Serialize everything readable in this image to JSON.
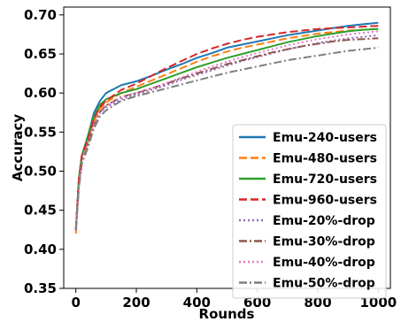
{
  "chart_data": {
    "type": "line",
    "title": "",
    "xlabel": "Rounds",
    "ylabel": "Accuracy",
    "xlim": [
      -40,
      1040
    ],
    "ylim": [
      0.35,
      0.71
    ],
    "xticks": [
      0,
      200,
      400,
      600,
      800,
      1000
    ],
    "yticks": [
      0.35,
      0.4,
      0.45,
      0.5,
      0.55,
      0.6,
      0.65,
      0.7
    ],
    "ytick_labels": [
      "0.35",
      "0.40",
      "0.45",
      "0.50",
      "0.55",
      "0.60",
      "0.65",
      "0.70"
    ],
    "grid": false,
    "legend_position": "lower-right",
    "x": [
      0,
      10,
      20,
      40,
      60,
      80,
      100,
      150,
      200,
      250,
      300,
      350,
      400,
      450,
      500,
      550,
      600,
      650,
      700,
      750,
      800,
      850,
      900,
      950,
      1000
    ],
    "series": [
      {
        "name": "Emu-240-users",
        "color": "#1f77b4",
        "dash": "solid",
        "values": [
          0.425,
          0.49,
          0.52,
          0.545,
          0.575,
          0.59,
          0.6,
          0.61,
          0.615,
          0.622,
          0.63,
          0.637,
          0.645,
          0.651,
          0.658,
          0.662,
          0.666,
          0.67,
          0.674,
          0.677,
          0.68,
          0.683,
          0.686,
          0.688,
          0.69
        ]
      },
      {
        "name": "Emu-480-users",
        "color": "#ff7f0e",
        "dash": "dashed",
        "values": [
          0.42,
          0.49,
          0.52,
          0.54,
          0.565,
          0.58,
          0.588,
          0.6,
          0.608,
          0.616,
          0.624,
          0.632,
          0.64,
          0.647,
          0.653,
          0.658,
          0.662,
          0.666,
          0.67,
          0.673,
          0.676,
          0.678,
          0.68,
          0.681,
          0.682
        ]
      },
      {
        "name": "Emu-720-users",
        "color": "#2ca02c",
        "dash": "solid",
        "values": [
          0.425,
          0.49,
          0.52,
          0.545,
          0.57,
          0.585,
          0.592,
          0.6,
          0.605,
          0.612,
          0.619,
          0.626,
          0.633,
          0.639,
          0.645,
          0.65,
          0.655,
          0.66,
          0.665,
          0.669,
          0.673,
          0.676,
          0.679,
          0.681,
          0.682
        ]
      },
      {
        "name": "Emu-960-users",
        "color": "#d62728",
        "dash": "dashed",
        "values": [
          0.425,
          0.49,
          0.52,
          0.54,
          0.568,
          0.582,
          0.59,
          0.604,
          0.612,
          0.622,
          0.632,
          0.641,
          0.65,
          0.657,
          0.663,
          0.668,
          0.672,
          0.675,
          0.678,
          0.68,
          0.682,
          0.683,
          0.684,
          0.685,
          0.686
        ]
      },
      {
        "name": "Emu-20%-drop",
        "color": "#9467bd",
        "dash": "dotted",
        "values": [
          0.425,
          0.48,
          0.51,
          0.535,
          0.56,
          0.575,
          0.582,
          0.592,
          0.598,
          0.604,
          0.61,
          0.617,
          0.623,
          0.629,
          0.635,
          0.641,
          0.646,
          0.651,
          0.656,
          0.66,
          0.664,
          0.667,
          0.67,
          0.672,
          0.674
        ]
      },
      {
        "name": "Emu-30%-drop",
        "color": "#8c564b",
        "dash": "dashdot",
        "values": [
          0.425,
          0.48,
          0.51,
          0.535,
          0.56,
          0.576,
          0.584,
          0.595,
          0.6,
          0.606,
          0.612,
          0.619,
          0.625,
          0.631,
          0.637,
          0.642,
          0.647,
          0.652,
          0.656,
          0.66,
          0.663,
          0.666,
          0.668,
          0.669,
          0.67
        ]
      },
      {
        "name": "Emu-40%-drop",
        "color": "#e377c2",
        "dash": "dotted",
        "values": [
          0.425,
          0.48,
          0.51,
          0.535,
          0.56,
          0.576,
          0.584,
          0.594,
          0.6,
          0.606,
          0.613,
          0.62,
          0.627,
          0.634,
          0.64,
          0.646,
          0.651,
          0.656,
          0.661,
          0.665,
          0.669,
          0.672,
          0.675,
          0.677,
          0.679
        ]
      },
      {
        "name": "Emu-50%-drop",
        "color": "#7f7f7f",
        "dash": "dashdot",
        "values": [
          0.425,
          0.48,
          0.51,
          0.53,
          0.555,
          0.57,
          0.578,
          0.59,
          0.596,
          0.601,
          0.606,
          0.611,
          0.616,
          0.621,
          0.626,
          0.63,
          0.634,
          0.638,
          0.642,
          0.645,
          0.648,
          0.651,
          0.654,
          0.656,
          0.658
        ]
      }
    ]
  }
}
